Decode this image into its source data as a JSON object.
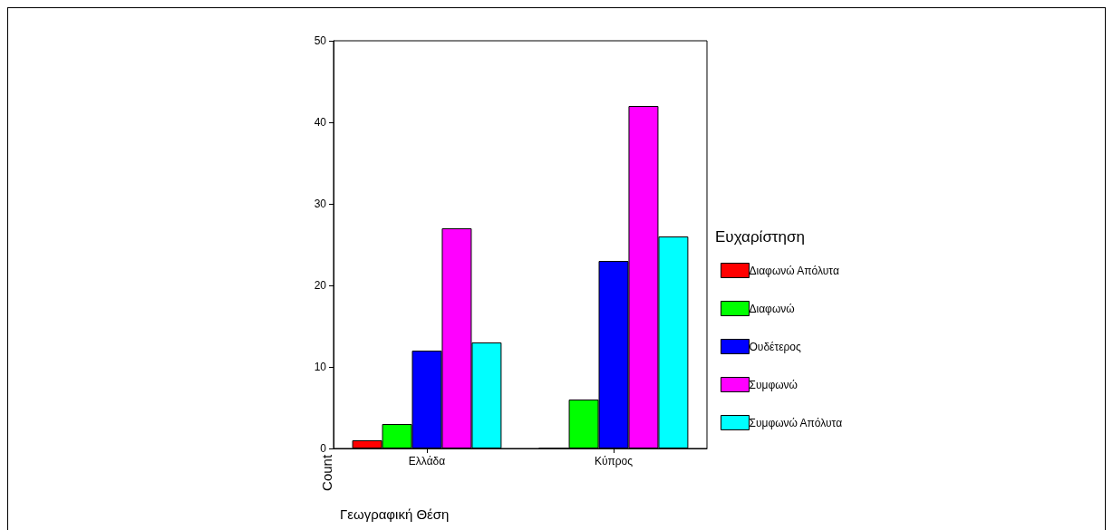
{
  "chart_data": {
    "type": "bar",
    "xlabel": "Γεωγραφική Θέση",
    "ylabel": "Count",
    "legend_title": "Ευχαρίστηση",
    "categories": [
      "Ελλάδα",
      "Κύπρος"
    ],
    "series": [
      {
        "name": "Διαφωνώ Απόλυτα",
        "color": "#ff0000",
        "values": [
          1,
          0
        ]
      },
      {
        "name": "Διαφωνώ",
        "color": "#00ff00",
        "values": [
          3,
          6
        ]
      },
      {
        "name": "Ουδέτερος",
        "color": "#0000ff",
        "values": [
          12,
          23
        ]
      },
      {
        "name": "Συμφωνώ",
        "color": "#ff00ff",
        "values": [
          27,
          42
        ]
      },
      {
        "name": "Συμφωνώ Απόλυτα",
        "color": "#00ffff",
        "values": [
          13,
          26
        ]
      }
    ],
    "ylim": [
      0,
      50
    ],
    "yticks": [
      0,
      10,
      20,
      30,
      40,
      50
    ],
    "grid": false,
    "legend": "right"
  }
}
